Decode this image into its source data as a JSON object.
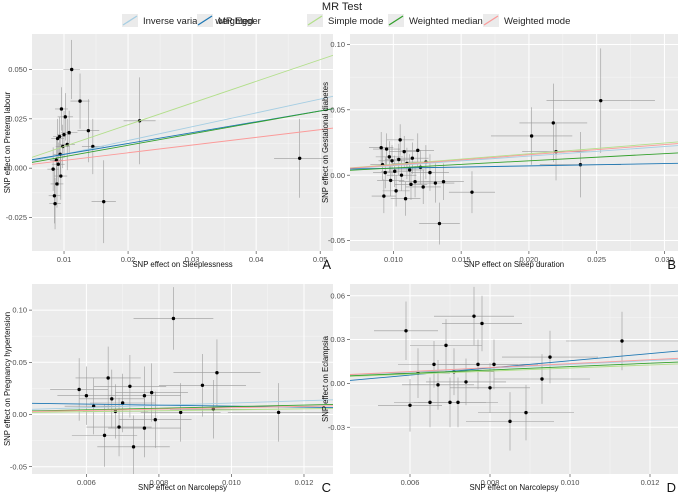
{
  "legend": {
    "title": "MR Test",
    "methods": [
      {
        "key": "ivw",
        "label": "Inverse variance weighted",
        "color": "#a6cee3"
      },
      {
        "key": "egger",
        "label": "MR Egger",
        "color": "#1f78b4"
      },
      {
        "key": "simple",
        "label": "Simple mode",
        "color": "#b2df8a"
      },
      {
        "key": "wmedian",
        "label": "Weighted median",
        "color": "#33a02c"
      },
      {
        "key": "wmode",
        "label": "Weighted mode",
        "color": "#fb9a99"
      }
    ]
  },
  "chart_data": [
    {
      "type": "scatter",
      "panel": "A",
      "xlabel": "SNP effect on Sleeplessness",
      "ylabel": "SNP effect on Preterm labour",
      "xlim": [
        0.005,
        0.052
      ],
      "ylim": [
        -0.042,
        0.068
      ],
      "xticks": [
        {
          "v": 0.01,
          "t": "0.01"
        },
        {
          "v": 0.02,
          "t": "0.02"
        },
        {
          "v": 0.03,
          "t": "0.03"
        },
        {
          "v": 0.04,
          "t": "0.04"
        },
        {
          "v": 0.05,
          "t": "0.05"
        }
      ],
      "yticks": [
        {
          "v": -0.025,
          "t": "-0.025"
        },
        {
          "v": 0.0,
          "t": "0.000"
        },
        {
          "v": 0.025,
          "t": "0.025"
        },
        {
          "v": 0.05,
          "t": "0.050"
        }
      ],
      "points": [
        {
          "x": 0.0083,
          "y": -0.0005,
          "ex": 0.0009,
          "ey": 0.011
        },
        {
          "x": 0.0085,
          "y": -0.014,
          "ex": 0.0009,
          "ey": 0.014
        },
        {
          "x": 0.0086,
          "y": -0.018,
          "ex": 0.0009,
          "ey": 0.013
        },
        {
          "x": 0.0088,
          "y": 0.004,
          "ex": 0.001,
          "ey": 0.011
        },
        {
          "x": 0.0089,
          "y": -0.008,
          "ex": 0.001,
          "ey": 0.012
        },
        {
          "x": 0.009,
          "y": 0.015,
          "ex": 0.001,
          "ey": 0.01
        },
        {
          "x": 0.0091,
          "y": 0.002,
          "ex": 0.001,
          "ey": 0.011
        },
        {
          "x": 0.0093,
          "y": 0.016,
          "ex": 0.001,
          "ey": 0.01
        },
        {
          "x": 0.0094,
          "y": 0.007,
          "ex": 0.001,
          "ey": 0.01
        },
        {
          "x": 0.0095,
          "y": -0.004,
          "ex": 0.001,
          "ey": 0.012
        },
        {
          "x": 0.0096,
          "y": 0.03,
          "ex": 0.001,
          "ey": 0.011
        },
        {
          "x": 0.0098,
          "y": 0.011,
          "ex": 0.0011,
          "ey": 0.011
        },
        {
          "x": 0.01,
          "y": 0.017,
          "ex": 0.0011,
          "ey": 0.012
        },
        {
          "x": 0.0102,
          "y": 0.026,
          "ex": 0.0012,
          "ey": 0.012
        },
        {
          "x": 0.0105,
          "y": 0.012,
          "ex": 0.0012,
          "ey": 0.013
        },
        {
          "x": 0.0108,
          "y": 0.018,
          "ex": 0.0013,
          "ey": 0.011
        },
        {
          "x": 0.0112,
          "y": 0.05,
          "ex": 0.0013,
          "ey": 0.015
        },
        {
          "x": 0.0125,
          "y": 0.034,
          "ex": 0.0015,
          "ey": 0.014
        },
        {
          "x": 0.0138,
          "y": 0.019,
          "ex": 0.0017,
          "ey": 0.016
        },
        {
          "x": 0.0145,
          "y": 0.011,
          "ex": 0.0017,
          "ey": 0.014
        },
        {
          "x": 0.0162,
          "y": -0.017,
          "ex": 0.0019,
          "ey": 0.021
        },
        {
          "x": 0.0218,
          "y": 0.024,
          "ex": 0.0025,
          "ey": 0.022
        },
        {
          "x": 0.0468,
          "y": 0.005,
          "ex": 0.004,
          "ey": 0.02
        }
      ],
      "lines": [
        {
          "method": "ivw",
          "intercept": 0.0,
          "slope": 0.7
        },
        {
          "method": "egger",
          "intercept": 0.0015,
          "slope": 0.55
        },
        {
          "method": "simple",
          "intercept": 0.0,
          "slope": 1.1
        },
        {
          "method": "wmedian",
          "intercept": 0.0,
          "slope": 0.58
        },
        {
          "method": "wmode",
          "intercept": 0.0,
          "slope": 0.39
        }
      ]
    },
    {
      "type": "scatter",
      "panel": "B",
      "xlabel": "SNP effect on Sleep duration",
      "ylabel": "SNP effect on Gestational diabetes",
      "xlim": [
        0.0068,
        0.031
      ],
      "ylim": [
        -0.058,
        0.108
      ],
      "xticks": [
        {
          "v": 0.01,
          "t": "0.010"
        },
        {
          "v": 0.015,
          "t": "0.015"
        },
        {
          "v": 0.02,
          "t": "0.020"
        },
        {
          "v": 0.025,
          "t": "0.025"
        },
        {
          "v": 0.03,
          "t": "0.030"
        }
      ],
      "yticks": [
        {
          "v": -0.05,
          "t": "-0.05"
        },
        {
          "v": 0.0,
          "t": "0.00"
        },
        {
          "v": 0.05,
          "t": "0.05"
        },
        {
          "v": 0.1,
          "t": "0.10"
        }
      ],
      "points": [
        {
          "x": 0.0091,
          "y": 0.021,
          "ex": 0.0009,
          "ey": 0.012
        },
        {
          "x": 0.0092,
          "y": 0.008,
          "ex": 0.0009,
          "ey": 0.012
        },
        {
          "x": 0.0093,
          "y": -0.016,
          "ex": 0.0009,
          "ey": 0.013
        },
        {
          "x": 0.0094,
          "y": 0.002,
          "ex": 0.0009,
          "ey": 0.012
        },
        {
          "x": 0.0095,
          "y": 0.02,
          "ex": 0.001,
          "ey": 0.012
        },
        {
          "x": 0.0097,
          "y": 0.014,
          "ex": 0.001,
          "ey": 0.012
        },
        {
          "x": 0.0098,
          "y": -0.004,
          "ex": 0.001,
          "ey": 0.012
        },
        {
          "x": 0.0099,
          "y": 0.011,
          "ex": 0.001,
          "ey": 0.012
        },
        {
          "x": 0.0101,
          "y": 0.003,
          "ex": 0.001,
          "ey": 0.012
        },
        {
          "x": 0.0102,
          "y": -0.012,
          "ex": 0.001,
          "ey": 0.012
        },
        {
          "x": 0.0104,
          "y": 0.012,
          "ex": 0.001,
          "ey": 0.012
        },
        {
          "x": 0.0105,
          "y": 0.027,
          "ex": 0.001,
          "ey": 0.012
        },
        {
          "x": 0.0106,
          "y": 0.0,
          "ex": 0.0011,
          "ey": 0.012
        },
        {
          "x": 0.0108,
          "y": 0.018,
          "ex": 0.0011,
          "ey": 0.012
        },
        {
          "x": 0.0109,
          "y": -0.018,
          "ex": 0.0011,
          "ey": 0.013
        },
        {
          "x": 0.011,
          "y": 0.009,
          "ex": 0.0011,
          "ey": 0.012
        },
        {
          "x": 0.0112,
          "y": 0.004,
          "ex": 0.0011,
          "ey": 0.012
        },
        {
          "x": 0.0113,
          "y": -0.007,
          "ex": 0.0012,
          "ey": 0.012
        },
        {
          "x": 0.0114,
          "y": 0.013,
          "ex": 0.0012,
          "ey": 0.012
        },
        {
          "x": 0.0116,
          "y": -0.005,
          "ex": 0.0012,
          "ey": 0.012
        },
        {
          "x": 0.0118,
          "y": 0.019,
          "ex": 0.0012,
          "ey": 0.013
        },
        {
          "x": 0.012,
          "y": 0.006,
          "ex": 0.0012,
          "ey": 0.013
        },
        {
          "x": 0.0122,
          "y": -0.009,
          "ex": 0.0013,
          "ey": 0.013
        },
        {
          "x": 0.0124,
          "y": 0.01,
          "ex": 0.0013,
          "ey": 0.013
        },
        {
          "x": 0.0127,
          "y": 0.002,
          "ex": 0.0014,
          "ey": 0.014
        },
        {
          "x": 0.0131,
          "y": -0.006,
          "ex": 0.0014,
          "ey": 0.015
        },
        {
          "x": 0.0134,
          "y": -0.037,
          "ex": 0.0015,
          "ey": 0.016
        },
        {
          "x": 0.0137,
          "y": -0.005,
          "ex": 0.0015,
          "ey": 0.014
        },
        {
          "x": 0.0158,
          "y": -0.013,
          "ex": 0.0017,
          "ey": 0.016
        },
        {
          "x": 0.0202,
          "y": 0.03,
          "ex": 0.003,
          "ey": 0.022
        },
        {
          "x": 0.0218,
          "y": 0.04,
          "ex": 0.0025,
          "ey": 0.03
        },
        {
          "x": 0.022,
          "y": 0.018,
          "ex": 0.0025,
          "ey": 0.022
        },
        {
          "x": 0.0238,
          "y": 0.008,
          "ex": 0.003,
          "ey": 0.025
        },
        {
          "x": 0.0253,
          "y": 0.057,
          "ex": 0.004,
          "ey": 0.04
        }
      ],
      "lines": [
        {
          "method": "ivw",
          "intercept": 0.0,
          "slope": 0.73
        },
        {
          "method": "egger",
          "intercept": 0.0035,
          "slope": 0.18
        },
        {
          "method": "simple",
          "intercept": 0.0,
          "slope": 0.82
        },
        {
          "method": "wmedian",
          "intercept": 0.0,
          "slope": 0.55
        },
        {
          "method": "wmode",
          "intercept": 0.0,
          "slope": 0.78
        }
      ]
    },
    {
      "type": "scatter",
      "panel": "C",
      "xlabel": "SNP effect on Narcolepsy",
      "ylabel": "SNP effect on Pregnancy hypertension",
      "xlim": [
        0.0045,
        0.0128
      ],
      "ylim": [
        -0.057,
        0.125
      ],
      "xticks": [
        {
          "v": 0.006,
          "t": "0.006"
        },
        {
          "v": 0.008,
          "t": "0.008"
        },
        {
          "v": 0.01,
          "t": "0.010"
        },
        {
          "v": 0.012,
          "t": "0.012"
        }
      ],
      "yticks": [
        {
          "v": -0.05,
          "t": "-0.05"
        },
        {
          "v": 0.0,
          "t": "0.00"
        },
        {
          "v": 0.05,
          "t": "0.05"
        },
        {
          "v": 0.1,
          "t": "0.10"
        }
      ],
      "points": [
        {
          "x": 0.0058,
          "y": 0.024,
          "ex": 0.0008,
          "ey": 0.03
        },
        {
          "x": 0.006,
          "y": 0.018,
          "ex": 0.0008,
          "ey": 0.028
        },
        {
          "x": 0.0062,
          "y": 0.008,
          "ex": 0.0008,
          "ey": 0.027
        },
        {
          "x": 0.0065,
          "y": -0.02,
          "ex": 0.0009,
          "ey": 0.03
        },
        {
          "x": 0.0066,
          "y": 0.035,
          "ex": 0.0009,
          "ey": 0.03
        },
        {
          "x": 0.0067,
          "y": 0.015,
          "ex": 0.0009,
          "ey": 0.028
        },
        {
          "x": 0.0068,
          "y": 0.003,
          "ex": 0.0009,
          "ey": 0.026
        },
        {
          "x": 0.0069,
          "y": -0.012,
          "ex": 0.0009,
          "ey": 0.028
        },
        {
          "x": 0.007,
          "y": 0.011,
          "ex": 0.0009,
          "ey": 0.028
        },
        {
          "x": 0.0072,
          "y": 0.027,
          "ex": 0.001,
          "ey": 0.03
        },
        {
          "x": 0.0073,
          "y": -0.031,
          "ex": 0.001,
          "ey": 0.03
        },
        {
          "x": 0.0076,
          "y": 0.018,
          "ex": 0.001,
          "ey": 0.028
        },
        {
          "x": 0.0076,
          "y": -0.013,
          "ex": 0.001,
          "ey": 0.028
        },
        {
          "x": 0.0078,
          "y": 0.021,
          "ex": 0.001,
          "ey": 0.028
        },
        {
          "x": 0.0079,
          "y": -0.005,
          "ex": 0.001,
          "ey": 0.027
        },
        {
          "x": 0.0084,
          "y": 0.092,
          "ex": 0.0011,
          "ey": 0.03
        },
        {
          "x": 0.0086,
          "y": 0.002,
          "ex": 0.0011,
          "ey": 0.028
        },
        {
          "x": 0.0092,
          "y": 0.028,
          "ex": 0.0012,
          "ey": 0.03
        },
        {
          "x": 0.0095,
          "y": 0.005,
          "ex": 0.0012,
          "ey": 0.028
        },
        {
          "x": 0.0096,
          "y": 0.04,
          "ex": 0.0012,
          "ey": 0.032
        },
        {
          "x": 0.0113,
          "y": 0.002,
          "ex": 0.0014,
          "ey": 0.028
        }
      ],
      "lines": [
        {
          "method": "ivw",
          "intercept": 0.0,
          "slope": 1.1
        },
        {
          "method": "egger",
          "intercept": 0.013,
          "slope": -0.5
        },
        {
          "method": "simple",
          "intercept": 0.0,
          "slope": 0.45
        },
        {
          "method": "wmedian",
          "intercept": 0.0,
          "slope": 0.75
        },
        {
          "method": "wmode",
          "intercept": 0.0,
          "slope": 0.65
        }
      ]
    },
    {
      "type": "scatter",
      "panel": "D",
      "xlabel": "SNP effect on Narcolepsy",
      "ylabel": "SNP effect on Eclampsia",
      "xlim": [
        0.0045,
        0.0127
      ],
      "ylim": [
        -0.062,
        0.068
      ],
      "xticks": [
        {
          "v": 0.006,
          "t": "0.006"
        },
        {
          "v": 0.008,
          "t": "0.008"
        },
        {
          "v": 0.01,
          "t": "0.010"
        },
        {
          "v": 0.012,
          "t": "0.012"
        }
      ],
      "yticks": [
        {
          "v": -0.03,
          "t": "-0.03"
        },
        {
          "v": 0.0,
          "t": "0.00"
        },
        {
          "v": 0.03,
          "t": "0.03"
        },
        {
          "v": 0.06,
          "t": "0.06"
        }
      ],
      "points": [
        {
          "x": 0.0059,
          "y": 0.036,
          "ex": 0.0008,
          "ey": 0.02
        },
        {
          "x": 0.006,
          "y": -0.015,
          "ex": 0.0008,
          "ey": 0.018
        },
        {
          "x": 0.0062,
          "y": 0.007,
          "ex": 0.0008,
          "ey": 0.017
        },
        {
          "x": 0.0065,
          "y": -0.013,
          "ex": 0.0009,
          "ey": 0.017
        },
        {
          "x": 0.0066,
          "y": 0.013,
          "ex": 0.0009,
          "ey": 0.016
        },
        {
          "x": 0.0067,
          "y": -0.001,
          "ex": 0.0009,
          "ey": 0.017
        },
        {
          "x": 0.0069,
          "y": 0.026,
          "ex": 0.0009,
          "ey": 0.018
        },
        {
          "x": 0.007,
          "y": -0.013,
          "ex": 0.0009,
          "ey": 0.017
        },
        {
          "x": 0.0071,
          "y": 0.008,
          "ex": 0.001,
          "ey": 0.016
        },
        {
          "x": 0.0072,
          "y": -0.013,
          "ex": 0.001,
          "ey": 0.017
        },
        {
          "x": 0.0074,
          "y": 0.001,
          "ex": 0.001,
          "ey": 0.016
        },
        {
          "x": 0.0076,
          "y": 0.046,
          "ex": 0.001,
          "ey": 0.02
        },
        {
          "x": 0.0077,
          "y": 0.013,
          "ex": 0.001,
          "ey": 0.017
        },
        {
          "x": 0.0078,
          "y": 0.041,
          "ex": 0.001,
          "ey": 0.019
        },
        {
          "x": 0.008,
          "y": -0.003,
          "ex": 0.001,
          "ey": 0.017
        },
        {
          "x": 0.0081,
          "y": 0.013,
          "ex": 0.0011,
          "ey": 0.017
        },
        {
          "x": 0.0085,
          "y": -0.026,
          "ex": 0.0011,
          "ey": 0.02
        },
        {
          "x": 0.0089,
          "y": -0.02,
          "ex": 0.0012,
          "ey": 0.019
        },
        {
          "x": 0.0093,
          "y": 0.003,
          "ex": 0.0012,
          "ey": 0.017
        },
        {
          "x": 0.0095,
          "y": 0.018,
          "ex": 0.0012,
          "ey": 0.018
        },
        {
          "x": 0.0113,
          "y": 0.029,
          "ex": 0.0014,
          "ey": 0.02
        }
      ],
      "lines": [
        {
          "method": "ivw",
          "intercept": 0.0,
          "slope": 1.3
        },
        {
          "method": "egger",
          "intercept": -0.009,
          "slope": 2.45
        },
        {
          "method": "simple",
          "intercept": 0.0,
          "slope": 1.05
        },
        {
          "method": "wmedian",
          "intercept": 0.0,
          "slope": 1.15
        },
        {
          "method": "wmode",
          "intercept": 0.0,
          "slope": 1.35
        }
      ]
    }
  ]
}
